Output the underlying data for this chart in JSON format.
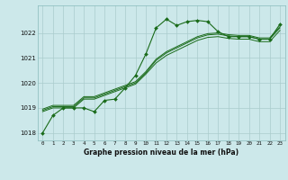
{
  "title": "Graphe pression niveau de la mer (hPa)",
  "background_color": "#cce8ea",
  "grid_color": "#aacccc",
  "line_color": "#1a6b1a",
  "marker_color": "#1a6b1a",
  "ylim": [
    1017.7,
    1023.1
  ],
  "xlim": [
    -0.5,
    23.5
  ],
  "yticks": [
    1018,
    1019,
    1020,
    1021,
    1022
  ],
  "xticks": [
    0,
    1,
    2,
    3,
    4,
    5,
    6,
    7,
    8,
    9,
    10,
    11,
    12,
    13,
    14,
    15,
    16,
    17,
    18,
    19,
    20,
    21,
    22,
    23
  ],
  "series1_x": [
    0,
    1,
    2,
    3,
    4,
    5,
    6,
    7,
    8,
    9,
    10,
    11,
    12,
    13,
    14,
    15,
    16,
    17,
    18,
    19,
    20,
    21,
    22,
    23
  ],
  "series1_y": [
    1018.0,
    1018.7,
    1019.0,
    1019.0,
    1019.0,
    1018.85,
    1019.3,
    1019.35,
    1019.8,
    1020.3,
    1021.15,
    1022.2,
    1022.55,
    1022.3,
    1022.45,
    1022.5,
    1022.45,
    1022.05,
    1021.85,
    1021.85,
    1021.85,
    1021.75,
    1021.75,
    1022.35
  ],
  "series2_x": [
    0,
    1,
    2,
    3,
    4,
    5,
    6,
    7,
    8,
    9,
    10,
    11,
    12,
    13,
    14,
    15,
    16,
    17,
    18,
    19,
    20,
    21,
    22,
    23
  ],
  "series2_y": [
    1018.85,
    1019.0,
    1019.0,
    1019.0,
    1019.35,
    1019.35,
    1019.5,
    1019.65,
    1019.8,
    1019.95,
    1020.35,
    1020.8,
    1021.1,
    1021.3,
    1021.5,
    1021.7,
    1021.82,
    1021.85,
    1021.78,
    1021.75,
    1021.75,
    1021.65,
    1021.65,
    1022.1
  ],
  "series3_x": [
    0,
    1,
    2,
    3,
    4,
    5,
    6,
    7,
    8,
    9,
    10,
    11,
    12,
    13,
    14,
    15,
    16,
    17,
    18,
    19,
    20,
    21,
    22,
    23
  ],
  "series3_y": [
    1018.9,
    1019.05,
    1019.05,
    1019.05,
    1019.4,
    1019.4,
    1019.55,
    1019.7,
    1019.85,
    1020.0,
    1020.4,
    1020.9,
    1021.2,
    1021.4,
    1021.6,
    1021.8,
    1021.92,
    1021.95,
    1021.88,
    1021.85,
    1021.85,
    1021.75,
    1021.75,
    1022.2
  ],
  "series4_x": [
    0,
    1,
    2,
    3,
    4,
    5,
    6,
    7,
    8,
    9,
    10,
    11,
    12,
    13,
    14,
    15,
    16,
    17,
    18,
    19,
    20,
    21,
    22,
    23
  ],
  "series4_y": [
    1018.95,
    1019.1,
    1019.1,
    1019.1,
    1019.45,
    1019.45,
    1019.6,
    1019.75,
    1019.9,
    1020.05,
    1020.45,
    1020.95,
    1021.25,
    1021.45,
    1021.65,
    1021.85,
    1021.97,
    1022.0,
    1021.93,
    1021.9,
    1021.9,
    1021.8,
    1021.8,
    1022.25
  ]
}
